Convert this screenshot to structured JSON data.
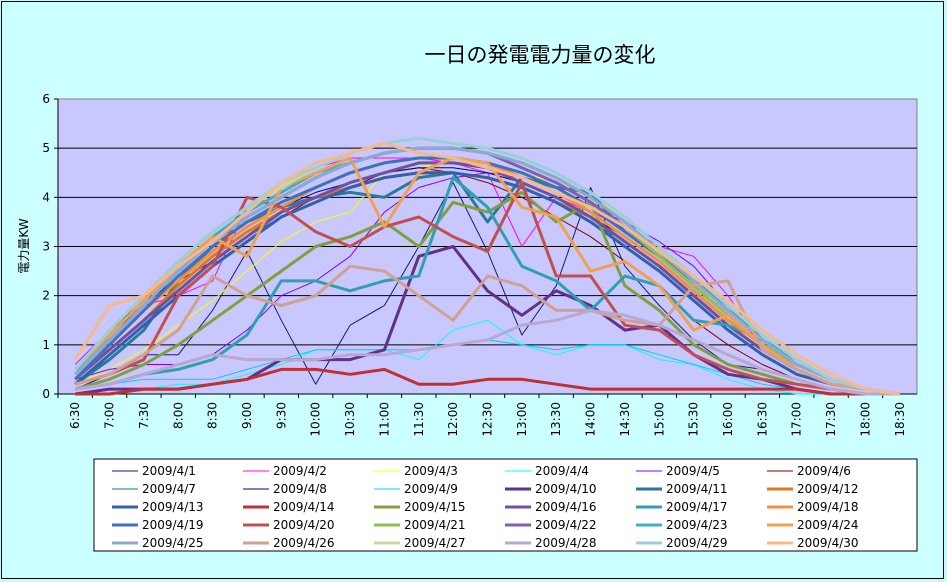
{
  "chart_data": {
    "type": "line",
    "title": "一日の発電電力量の変化",
    "xlabel": "",
    "ylabel": "電力量KW",
    "ylim": [
      0,
      6
    ],
    "yticks": [
      0,
      1,
      2,
      3,
      4,
      5,
      6
    ],
    "grid": true,
    "legend_position": "bottom",
    "categories": [
      "6:30",
      "7:00",
      "7:30",
      "8:00",
      "8:30",
      "9:00",
      "9:30",
      "10:00",
      "10:30",
      "11:00",
      "11:30",
      "12:00",
      "12:30",
      "13:00",
      "13:30",
      "14:00",
      "14:30",
      "15:00",
      "15:30",
      "16:00",
      "16:30",
      "17:00",
      "17:30",
      "18:00",
      "18:30"
    ],
    "colors": {
      "plot_bg": "#c8c8ff",
      "chart_bg": "#ccffff",
      "gridline": "#000000"
    },
    "series": [
      {
        "name": "2009/4/1",
        "color": "#1a1a70",
        "width": 1,
        "values": [
          0.1,
          0.4,
          0.8,
          0.8,
          1.7,
          2.9,
          1.5,
          0.2,
          1.4,
          1.8,
          3.0,
          4.3,
          2.9,
          1.2,
          2.2,
          4.2,
          2.6,
          1.8,
          1.1,
          0.6,
          0.5,
          0.3,
          0.1,
          0.0,
          0.0
        ]
      },
      {
        "name": "2009/4/2",
        "color": "#ff00ff",
        "width": 1,
        "values": [
          0.6,
          1.3,
          1.8,
          2.0,
          2.3,
          3.8,
          4.3,
          4.6,
          4.8,
          4.8,
          4.8,
          4.7,
          4.5,
          3.0,
          4.0,
          3.7,
          3.4,
          3.0,
          2.8,
          2.0,
          1.0,
          0.6,
          0.3,
          0.1,
          0.0
        ]
      },
      {
        "name": "2009/4/3",
        "color": "#ffff00",
        "width": 1,
        "values": [
          0.2,
          0.5,
          0.9,
          1.4,
          1.9,
          2.5,
          3.1,
          3.5,
          3.7,
          4.5,
          4.6,
          4.8,
          4.7,
          4.5,
          4.3,
          4.0,
          3.6,
          3.0,
          2.3,
          1.6,
          1.0,
          0.5,
          0.2,
          0.1,
          0.0
        ]
      },
      {
        "name": "2009/4/4",
        "color": "#00ffff",
        "width": 1,
        "values": [
          0.0,
          0.1,
          0.1,
          0.2,
          0.2,
          0.4,
          0.6,
          0.9,
          0.9,
          0.9,
          0.7,
          1.3,
          1.5,
          1.0,
          0.8,
          1.0,
          1.0,
          0.7,
          0.6,
          0.3,
          0.1,
          0.0,
          0.0,
          0.0,
          0.0
        ]
      },
      {
        "name": "2009/4/5",
        "color": "#8000ff",
        "width": 1,
        "values": [
          0.3,
          0.5,
          0.6,
          0.6,
          0.8,
          1.3,
          2.0,
          2.3,
          2.8,
          3.7,
          4.2,
          4.4,
          4.5,
          4.4,
          4.2,
          3.8,
          3.5,
          3.1,
          2.6,
          1.8,
          1.0,
          0.5,
          0.2,
          0.1,
          0.0
        ]
      },
      {
        "name": "2009/4/6",
        "color": "#800000",
        "width": 1,
        "values": [
          0.4,
          1.3,
          1.9,
          2.3,
          2.7,
          3.2,
          3.6,
          4.0,
          4.2,
          4.5,
          4.6,
          4.5,
          4.3,
          4.0,
          3.6,
          3.2,
          2.7,
          2.2,
          1.5,
          1.0,
          0.6,
          0.3,
          0.1,
          0.0,
          0.0
        ]
      },
      {
        "name": "2009/4/7",
        "color": "#008080",
        "width": 1,
        "values": [
          0.3,
          0.9,
          1.5,
          2.1,
          2.7,
          3.2,
          3.6,
          3.9,
          4.2,
          4.4,
          4.5,
          4.5,
          4.4,
          4.2,
          3.9,
          3.5,
          3.1,
          2.6,
          2.0,
          1.4,
          0.9,
          0.5,
          0.2,
          0.1,
          0.0
        ]
      },
      {
        "name": "2009/4/8",
        "color": "#000080",
        "width": 1,
        "values": [
          0.5,
          1.2,
          1.8,
          2.4,
          2.9,
          3.4,
          3.8,
          4.1,
          4.3,
          4.5,
          4.6,
          4.6,
          4.5,
          4.3,
          4.0,
          3.6,
          3.2,
          2.7,
          2.1,
          1.5,
          1.0,
          0.5,
          0.2,
          0.1,
          0.0
        ]
      },
      {
        "name": "2009/4/9",
        "color": "#00ccff",
        "width": 1,
        "values": [
          0.1,
          0.2,
          0.3,
          0.3,
          0.3,
          0.5,
          0.7,
          0.9,
          0.9,
          0.9,
          0.9,
          1.0,
          1.1,
          1.0,
          0.9,
          1.0,
          1.0,
          0.8,
          0.6,
          0.4,
          0.2,
          0.1,
          0.0,
          0.0,
          0.0
        ]
      },
      {
        "name": "2009/4/10",
        "color": "#60308a",
        "width": 3,
        "values": [
          0.0,
          0.1,
          0.1,
          0.1,
          0.2,
          0.3,
          0.7,
          0.7,
          0.7,
          0.9,
          2.8,
          3.0,
          2.1,
          1.6,
          2.1,
          1.8,
          1.3,
          1.4,
          0.8,
          0.4,
          0.3,
          0.1,
          0.0,
          0.0,
          0.0
        ]
      },
      {
        "name": "2009/4/11",
        "color": "#2c7898",
        "width": 3,
        "values": [
          0.2,
          0.7,
          1.3,
          2.3,
          3.0,
          3.5,
          3.8,
          4.0,
          4.1,
          4.0,
          4.4,
          4.5,
          3.5,
          4.4,
          4.2,
          4.1,
          3.3,
          2.8,
          2.3,
          1.8,
          1.1,
          0.6,
          0.3,
          0.1,
          0.0
        ]
      },
      {
        "name": "2009/4/12",
        "color": "#e07820",
        "width": 3,
        "values": [
          0.3,
          0.9,
          1.5,
          2.2,
          2.8,
          3.3,
          3.7,
          4.0,
          4.2,
          4.4,
          4.5,
          4.5,
          4.4,
          4.2,
          3.9,
          3.6,
          3.1,
          2.6,
          2.0,
          1.4,
          0.9,
          0.5,
          0.2,
          0.1,
          0.0
        ]
      },
      {
        "name": "2009/4/13",
        "color": "#3060b0",
        "width": 3,
        "values": [
          0.2,
          0.8,
          1.4,
          2.0,
          2.6,
          3.1,
          3.6,
          3.9,
          4.2,
          4.4,
          4.5,
          4.5,
          4.4,
          4.2,
          3.9,
          3.5,
          3.0,
          2.5,
          1.9,
          1.3,
          0.8,
          0.4,
          0.2,
          0.1,
          0.0
        ]
      },
      {
        "name": "2009/4/14",
        "color": "#c03030",
        "width": 3,
        "values": [
          0.0,
          0.0,
          0.1,
          0.1,
          0.2,
          0.3,
          0.5,
          0.5,
          0.4,
          0.5,
          0.2,
          0.2,
          0.3,
          0.3,
          0.2,
          0.1,
          0.1,
          0.1,
          0.1,
          0.1,
          0.1,
          0.1,
          0.0,
          0.0,
          0.0
        ]
      },
      {
        "name": "2009/4/15",
        "color": "#80a040",
        "width": 3,
        "values": [
          0.1,
          0.3,
          0.6,
          1.0,
          1.5,
          2.0,
          2.5,
          3.0,
          3.2,
          3.5,
          3.0,
          3.9,
          3.7,
          4.1,
          3.5,
          3.9,
          2.2,
          1.7,
          1.0,
          0.6,
          0.4,
          0.2,
          0.1,
          0.0,
          0.0
        ]
      },
      {
        "name": "2009/4/16",
        "color": "#7050a0",
        "width": 3,
        "values": [
          0.3,
          0.9,
          1.5,
          2.1,
          2.7,
          3.2,
          3.7,
          4.0,
          4.3,
          4.5,
          4.7,
          4.7,
          4.6,
          4.3,
          4.0,
          3.6,
          3.1,
          2.6,
          2.0,
          1.4,
          0.9,
          0.5,
          0.2,
          0.1,
          0.0
        ]
      },
      {
        "name": "2009/4/17",
        "color": "#30a0b0",
        "width": 3,
        "values": [
          0.1,
          0.2,
          0.4,
          0.5,
          0.7,
          1.2,
          2.3,
          2.3,
          2.1,
          2.3,
          2.4,
          4.4,
          3.8,
          2.6,
          2.3,
          1.7,
          2.4,
          2.2,
          1.5,
          1.4,
          1.1,
          0.7,
          0.3,
          0.1,
          0.0
        ]
      },
      {
        "name": "2009/4/18",
        "color": "#f09040",
        "width": 3,
        "values": [
          0.3,
          1.0,
          1.7,
          2.3,
          2.9,
          3.4,
          3.8,
          4.2,
          4.5,
          4.7,
          4.8,
          4.8,
          4.7,
          4.4,
          4.1,
          3.7,
          3.2,
          2.7,
          2.1,
          1.5,
          1.0,
          0.5,
          0.2,
          0.1,
          0.0
        ]
      },
      {
        "name": "2009/4/19",
        "color": "#4070c0",
        "width": 3,
        "values": [
          0.3,
          1.0,
          1.7,
          2.4,
          3.0,
          3.5,
          3.9,
          4.2,
          4.5,
          4.7,
          4.8,
          4.8,
          4.7,
          4.5,
          4.2,
          3.8,
          3.3,
          2.8,
          2.2,
          1.6,
          1.0,
          0.6,
          0.3,
          0.1,
          0.0
        ]
      },
      {
        "name": "2009/4/20",
        "color": "#c05050",
        "width": 3,
        "values": [
          0.2,
          0.4,
          0.7,
          2.0,
          2.6,
          4.0,
          3.8,
          3.3,
          3.0,
          3.4,
          3.6,
          3.2,
          2.9,
          4.3,
          2.4,
          2.4,
          1.4,
          1.3,
          0.8,
          0.5,
          0.3,
          0.2,
          0.1,
          0.0,
          0.0
        ]
      },
      {
        "name": "2009/4/21",
        "color": "#90c050",
        "width": 3,
        "values": [
          0.4,
          1.1,
          1.8,
          2.5,
          3.1,
          3.6,
          4.0,
          4.4,
          4.7,
          4.9,
          5.0,
          5.0,
          4.9,
          4.6,
          4.3,
          3.9,
          3.4,
          2.8,
          2.2,
          1.6,
          1.0,
          0.6,
          0.3,
          0.1,
          0.0
        ]
      },
      {
        "name": "2009/4/22",
        "color": "#8060b0",
        "width": 3,
        "values": [
          0.4,
          1.1,
          1.8,
          2.5,
          3.1,
          3.6,
          4.0,
          4.4,
          4.7,
          4.9,
          5.0,
          5.0,
          4.9,
          4.6,
          4.3,
          3.9,
          3.4,
          2.9,
          2.3,
          1.7,
          1.1,
          0.6,
          0.3,
          0.1,
          0.0
        ]
      },
      {
        "name": "2009/4/23",
        "color": "#40b0c0",
        "width": 3,
        "values": [
          0.4,
          1.2,
          1.9,
          2.6,
          3.2,
          3.7,
          4.1,
          4.5,
          4.7,
          4.9,
          5.0,
          5.0,
          4.9,
          4.7,
          4.4,
          4.0,
          3.5,
          2.9,
          2.3,
          1.7,
          1.1,
          0.6,
          0.3,
          0.1,
          0.0
        ]
      },
      {
        "name": "2009/4/24",
        "color": "#f0a050",
        "width": 3,
        "values": [
          0.5,
          1.2,
          1.9,
          2.6,
          3.2,
          2.8,
          4.2,
          4.5,
          4.8,
          3.4,
          4.5,
          4.8,
          4.7,
          3.8,
          3.6,
          2.5,
          2.7,
          2.2,
          1.3,
          1.6,
          1.0,
          0.5,
          0.2,
          0.1,
          0.0
        ]
      },
      {
        "name": "2009/4/25",
        "color": "#90a8d0",
        "width": 3,
        "values": [
          0.4,
          1.1,
          1.8,
          2.5,
          3.1,
          3.6,
          4.0,
          4.4,
          4.7,
          4.9,
          5.0,
          5.0,
          4.9,
          4.7,
          4.4,
          4.0,
          3.5,
          2.9,
          2.3,
          1.7,
          1.1,
          0.6,
          0.3,
          0.1,
          0.0
        ]
      },
      {
        "name": "2009/4/26",
        "color": "#d0a090",
        "width": 3,
        "values": [
          0.2,
          0.4,
          0.8,
          1.3,
          2.4,
          2.0,
          1.8,
          2.0,
          2.6,
          2.5,
          2.0,
          1.5,
          2.4,
          2.2,
          1.7,
          1.7,
          1.5,
          1.4,
          2.2,
          2.3,
          0.9,
          0.5,
          0.2,
          0.1,
          0.0
        ]
      },
      {
        "name": "2009/4/27",
        "color": "#c8d8a0",
        "width": 3,
        "values": [
          0.5,
          1.3,
          2.0,
          2.7,
          3.3,
          3.8,
          4.2,
          4.6,
          4.9,
          5.1,
          5.2,
          5.1,
          5.0,
          4.8,
          4.5,
          4.1,
          3.6,
          3.0,
          2.4,
          1.8,
          1.2,
          0.7,
          0.3,
          0.1,
          0.0
        ]
      },
      {
        "name": "2009/4/28",
        "color": "#b8a8d0",
        "width": 3,
        "values": [
          0.1,
          0.2,
          0.4,
          0.6,
          0.8,
          0.7,
          0.7,
          0.7,
          0.8,
          0.8,
          0.9,
          1.0,
          1.1,
          1.4,
          1.5,
          1.7,
          1.6,
          1.4,
          1.1,
          0.8,
          0.5,
          0.3,
          0.1,
          0.0,
          0.0
        ]
      },
      {
        "name": "2009/4/29",
        "color": "#98d0d8",
        "width": 3,
        "values": [
          0.5,
          1.3,
          2.0,
          2.7,
          3.3,
          3.8,
          4.3,
          4.6,
          4.9,
          5.1,
          5.2,
          5.1,
          5.0,
          4.8,
          4.5,
          4.1,
          3.6,
          3.0,
          2.4,
          1.8,
          1.2,
          0.7,
          0.3,
          0.1,
          0.0
        ]
      },
      {
        "name": "2009/4/30",
        "color": "#f8b888",
        "width": 3,
        "values": [
          0.7,
          1.8,
          2.0,
          2.6,
          3.1,
          3.7,
          4.3,
          4.7,
          4.9,
          5.1,
          4.9,
          4.8,
          4.6,
          4.4,
          4.1,
          3.8,
          3.4,
          2.9,
          2.4,
          1.9,
          1.3,
          0.8,
          0.4,
          0.1,
          0.0
        ]
      }
    ]
  }
}
